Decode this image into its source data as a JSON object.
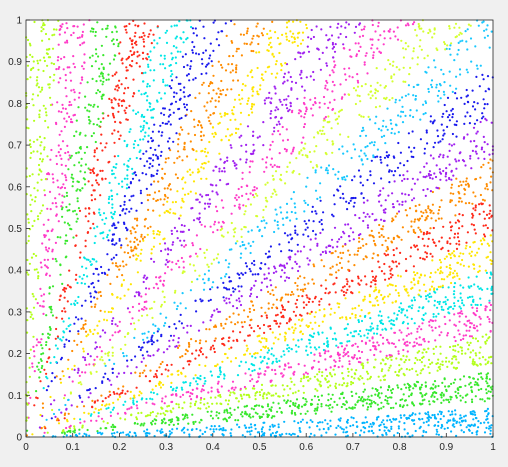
{
  "chart_data": {
    "type": "scatter",
    "title": "",
    "xlabel": "",
    "ylabel": "",
    "xlim": [
      0,
      1
    ],
    "ylim": [
      0,
      1
    ],
    "grid": false,
    "legend": "none",
    "x_ticks": [
      "0",
      "0.1",
      "0.2",
      "0.3",
      "0.4",
      "0.5",
      "0.6",
      "0.7",
      "0.8",
      "0.9",
      "1"
    ],
    "y_ticks": [
      "0",
      "0.1",
      "0.2",
      "0.3",
      "0.4",
      "0.5",
      "0.6",
      "0.7",
      "0.8",
      "0.9",
      "1"
    ],
    "background": "#f0f0f0",
    "plot_background": "#ffffff",
    "point_color_cycle": [
      "#00b4ff",
      "#38e82c",
      "#b3ff1a",
      "#ff3cc8",
      "#00e6e6",
      "#ffe600",
      "#ff2a1a",
      "#ff8c00",
      "#a020f0",
      "#1a1aee",
      "#18c8ff",
      "#d4ff30"
    ],
    "bands": [
      {
        "angle_deg": 2,
        "color": "#00b4ff",
        "count": 420
      },
      {
        "angle_deg": 7,
        "color": "#38e82c",
        "count": 460
      },
      {
        "angle_deg": 12,
        "color": "#b3ff1a",
        "count": 360
      },
      {
        "angle_deg": 16,
        "color": "#ff3cc8",
        "count": 320
      },
      {
        "angle_deg": 20,
        "color": "#00e6e6",
        "count": 320
      },
      {
        "angle_deg": 24,
        "color": "#ffe600",
        "count": 300
      },
      {
        "angle_deg": 28,
        "color": "#ff2a1a",
        "count": 300
      },
      {
        "angle_deg": 32,
        "color": "#ff8c00",
        "count": 290
      },
      {
        "angle_deg": 36,
        "color": "#a020f0",
        "count": 290
      },
      {
        "angle_deg": 40,
        "color": "#1a1aee",
        "count": 280
      },
      {
        "angle_deg": 44,
        "color": "#18c8ff",
        "count": 270
      },
      {
        "angle_deg": 48,
        "color": "#d4ff30",
        "count": 270
      },
      {
        "angle_deg": 52,
        "color": "#ff3cc8",
        "count": 260
      },
      {
        "angle_deg": 56,
        "color": "#a020f0",
        "count": 250
      },
      {
        "angle_deg": 60,
        "color": "#ffe600",
        "count": 240
      },
      {
        "angle_deg": 64,
        "color": "#ff8c00",
        "count": 230
      },
      {
        "angle_deg": 68,
        "color": "#1a1aee",
        "count": 230
      },
      {
        "angle_deg": 72,
        "color": "#00e6e6",
        "count": 220
      },
      {
        "angle_deg": 76,
        "color": "#ff2a1a",
        "count": 210
      },
      {
        "angle_deg": 80,
        "color": "#38e82c",
        "count": 200
      },
      {
        "angle_deg": 84,
        "color": "#ff3cc8",
        "count": 190
      },
      {
        "angle_deg": 88,
        "color": "#b3ff1a",
        "count": 180
      }
    ]
  }
}
